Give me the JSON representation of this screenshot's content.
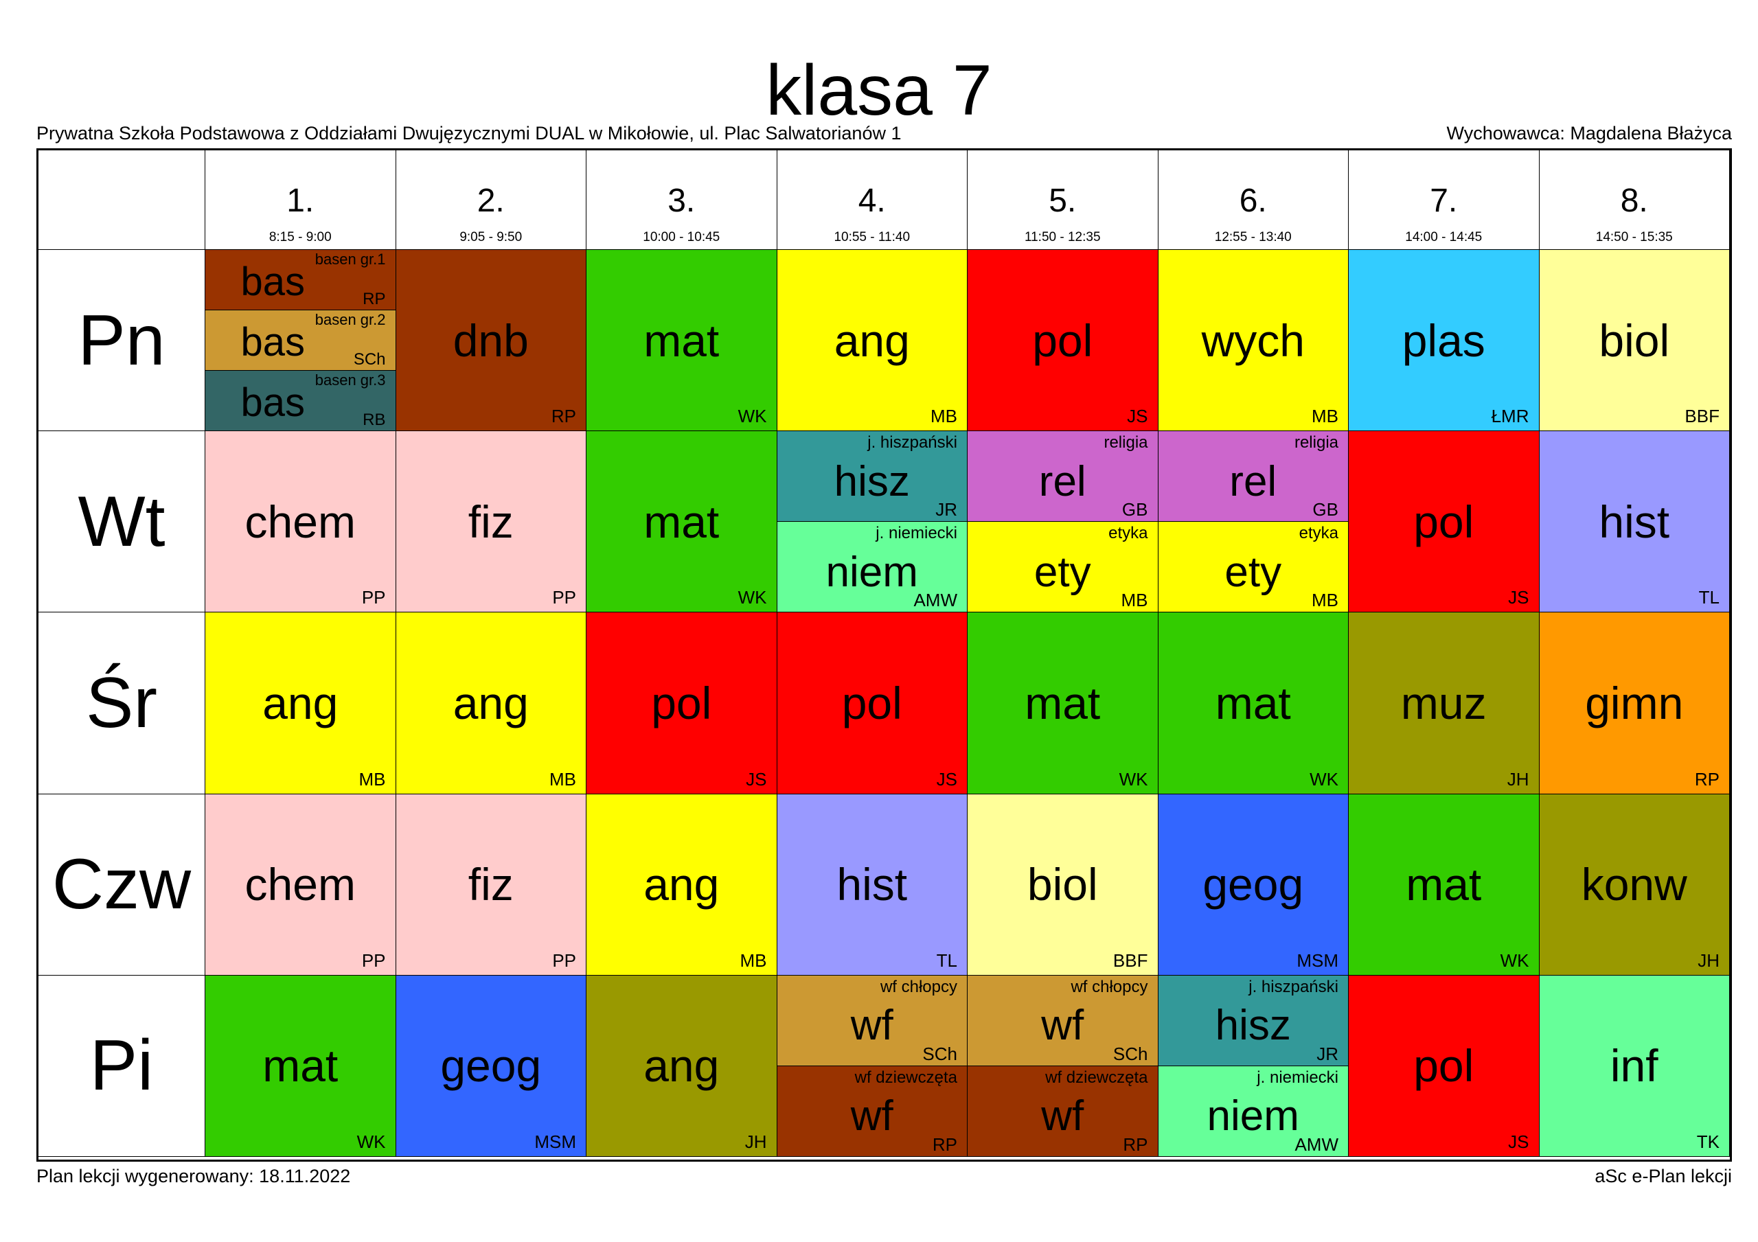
{
  "title": "klasa 7",
  "school": "Prywatna Szkoła Podstawowa z Oddziałami Dwujęzycznymi DUAL w Mikołowie, ul. Plac Salwatorianów 1",
  "tutor": "Wychowawca: Magdalena Błażyca",
  "footer_left": "Plan lekcji wygenerowany: 18.11.2022",
  "footer_right": "aSc e-Plan lekcji",
  "periods": [
    {
      "num": "1.",
      "time": "8:15 - 9:00"
    },
    {
      "num": "2.",
      "time": "9:05 - 9:50"
    },
    {
      "num": "3.",
      "time": "10:00 - 10:45"
    },
    {
      "num": "4.",
      "time": "10:55 - 11:40"
    },
    {
      "num": "5.",
      "time": "11:50 - 12:35"
    },
    {
      "num": "6.",
      "time": "12:55 - 13:40"
    },
    {
      "num": "7.",
      "time": "14:00 - 14:45"
    },
    {
      "num": "8.",
      "time": "14:50 - 15:35"
    }
  ],
  "days": [
    {
      "name": "Pn",
      "lessons": [
        [
          {
            "subject": "bas",
            "group": "basen gr.1",
            "teacher": "RP",
            "color": "#993300"
          },
          {
            "subject": "bas",
            "group": "basen gr.2",
            "teacher": "SCh",
            "color": "#CC9933"
          },
          {
            "subject": "bas",
            "group": "basen gr.3",
            "teacher": "RB",
            "color": "#336666"
          }
        ],
        [
          {
            "subject": "dnb",
            "teacher": "RP",
            "color": "#993300"
          }
        ],
        [
          {
            "subject": "mat",
            "teacher": "WK",
            "color": "#33CC00"
          }
        ],
        [
          {
            "subject": "ang",
            "teacher": "MB",
            "color": "#FFFF00"
          }
        ],
        [
          {
            "subject": "pol",
            "teacher": "JS",
            "color": "#FF0000"
          }
        ],
        [
          {
            "subject": "wych",
            "teacher": "MB",
            "color": "#FFFF00"
          }
        ],
        [
          {
            "subject": "plas",
            "teacher": "ŁMR",
            "color": "#33CCFF"
          }
        ],
        [
          {
            "subject": "biol",
            "teacher": "BBF",
            "color": "#FFFF99"
          }
        ]
      ]
    },
    {
      "name": "Wt",
      "lessons": [
        [
          {
            "subject": "chem",
            "teacher": "PP",
            "color": "#FFCCCC"
          }
        ],
        [
          {
            "subject": "fiz",
            "teacher": "PP",
            "color": "#FFCCCC"
          }
        ],
        [
          {
            "subject": "mat",
            "teacher": "WK",
            "color": "#33CC00"
          }
        ],
        [
          {
            "subject": "hisz",
            "group": "j. hiszpański",
            "teacher": "JR",
            "color": "#339999"
          },
          {
            "subject": "niem",
            "group": "j. niemiecki",
            "teacher": "AMW",
            "color": "#66FF99"
          }
        ],
        [
          {
            "subject": "rel",
            "group": "religia",
            "teacher": "GB",
            "color": "#CC66CC"
          },
          {
            "subject": "ety",
            "group": "etyka",
            "teacher": "MB",
            "color": "#FFFF00"
          }
        ],
        [
          {
            "subject": "rel",
            "group": "religia",
            "teacher": "GB",
            "color": "#CC66CC"
          },
          {
            "subject": "ety",
            "group": "etyka",
            "teacher": "MB",
            "color": "#FFFF00"
          }
        ],
        [
          {
            "subject": "pol",
            "teacher": "JS",
            "color": "#FF0000"
          }
        ],
        [
          {
            "subject": "hist",
            "teacher": "TL",
            "color": "#9999FF"
          }
        ]
      ]
    },
    {
      "name": "Śr",
      "lessons": [
        [
          {
            "subject": "ang",
            "teacher": "MB",
            "color": "#FFFF00"
          }
        ],
        [
          {
            "subject": "ang",
            "teacher": "MB",
            "color": "#FFFF00"
          }
        ],
        [
          {
            "subject": "pol",
            "teacher": "JS",
            "color": "#FF0000"
          }
        ],
        [
          {
            "subject": "pol",
            "teacher": "JS",
            "color": "#FF0000"
          }
        ],
        [
          {
            "subject": "mat",
            "teacher": "WK",
            "color": "#33CC00"
          }
        ],
        [
          {
            "subject": "mat",
            "teacher": "WK",
            "color": "#33CC00"
          }
        ],
        [
          {
            "subject": "muz",
            "teacher": "JH",
            "color": "#999900"
          }
        ],
        [
          {
            "subject": "gimn",
            "teacher": "RP",
            "color": "#FF9900"
          }
        ]
      ]
    },
    {
      "name": "Czw",
      "lessons": [
        [
          {
            "subject": "chem",
            "teacher": "PP",
            "color": "#FFCCCC"
          }
        ],
        [
          {
            "subject": "fiz",
            "teacher": "PP",
            "color": "#FFCCCC"
          }
        ],
        [
          {
            "subject": "ang",
            "teacher": "MB",
            "color": "#FFFF00"
          }
        ],
        [
          {
            "subject": "hist",
            "teacher": "TL",
            "color": "#9999FF"
          }
        ],
        [
          {
            "subject": "biol",
            "teacher": "BBF",
            "color": "#FFFF99"
          }
        ],
        [
          {
            "subject": "geog",
            "teacher": "MSM",
            "color": "#3366FF"
          }
        ],
        [
          {
            "subject": "mat",
            "teacher": "WK",
            "color": "#33CC00"
          }
        ],
        [
          {
            "subject": "konw",
            "teacher": "JH",
            "color": "#999900"
          }
        ]
      ]
    },
    {
      "name": "Pi",
      "lessons": [
        [
          {
            "subject": "mat",
            "teacher": "WK",
            "color": "#33CC00"
          }
        ],
        [
          {
            "subject": "geog",
            "teacher": "MSM",
            "color": "#3366FF"
          }
        ],
        [
          {
            "subject": "ang",
            "teacher": "JH",
            "color": "#999900"
          }
        ],
        [
          {
            "subject": "wf",
            "group": "wf chłopcy",
            "teacher": "SCh",
            "color": "#CC9933"
          },
          {
            "subject": "wf",
            "group": "wf dziewczęta",
            "teacher": "RP",
            "color": "#993300"
          }
        ],
        [
          {
            "subject": "wf",
            "group": "wf chłopcy",
            "teacher": "SCh",
            "color": "#CC9933"
          },
          {
            "subject": "wf",
            "group": "wf dziewczęta",
            "teacher": "RP",
            "color": "#993300"
          }
        ],
        [
          {
            "subject": "hisz",
            "group": "j. hiszpański",
            "teacher": "JR",
            "color": "#339999"
          },
          {
            "subject": "niem",
            "group": "j. niemiecki",
            "teacher": "AMW",
            "color": "#66FF99"
          }
        ],
        [
          {
            "subject": "pol",
            "teacher": "JS",
            "color": "#FF0000"
          }
        ],
        [
          {
            "subject": "inf",
            "teacher": "TK",
            "color": "#66FF99"
          }
        ]
      ]
    }
  ]
}
